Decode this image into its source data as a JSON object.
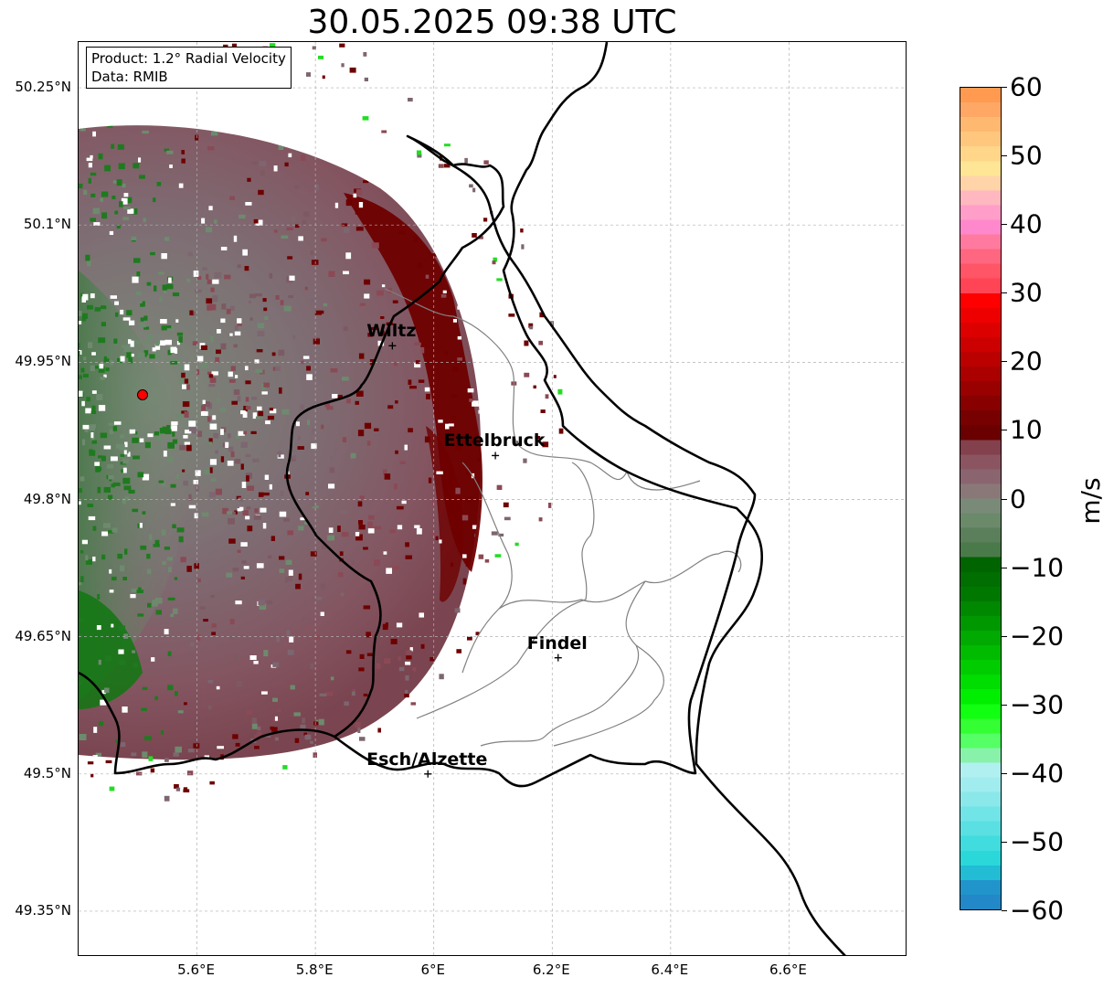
{
  "title": "30.05.2025 09:38 UTC",
  "info": {
    "product": "Product: 1.2° Radial Velocity",
    "source": "Data: RMIB"
  },
  "lat_labels": [
    "50.25°N",
    "50.1°N",
    "49.95°N",
    "49.8°N",
    "49.65°N",
    "49.5°N",
    "49.35°N"
  ],
  "lon_labels": [
    "5.6°E",
    "5.8°E",
    "6°E",
    "6.2°E",
    "6.4°E",
    "6.6°E"
  ],
  "lat_values": [
    50.25,
    50.1,
    49.95,
    49.8,
    49.65,
    49.5,
    49.35
  ],
  "lon_values": [
    5.6,
    5.8,
    6.0,
    6.2,
    6.4,
    6.6
  ],
  "extent": {
    "lon_min": 5.4,
    "lon_max": 6.8,
    "lat_min": 49.3,
    "lat_max": 50.3
  },
  "colorbar": {
    "label": "m/s",
    "ticks": [
      "60",
      "50",
      "40",
      "30",
      "20",
      "10",
      "0",
      "−10",
      "−20",
      "−30",
      "−40",
      "−50",
      "−60"
    ],
    "range": [
      -60,
      60
    ]
  },
  "cities": [
    {
      "name": "Wiltz",
      "lon": 5.93,
      "lat": 49.968
    },
    {
      "name": "Ettelbruck",
      "lon": 6.104,
      "lat": 49.848
    },
    {
      "name": "Findel",
      "lon": 6.21,
      "lat": 49.627
    },
    {
      "name": "Esch/Alzette",
      "lon": 5.99,
      "lat": 49.5
    }
  ],
  "radar_site": {
    "lon": 5.505,
    "lat": 49.914
  },
  "colors": {
    "dark_red": "#6e0000",
    "muted_red": "#8a4a55",
    "muted_grey": "#7d6670",
    "grey_green": "#6e8a6e",
    "dark_green": "#006400",
    "bright_green": "#22dd22",
    "radar_marker": "#ff0000"
  }
}
